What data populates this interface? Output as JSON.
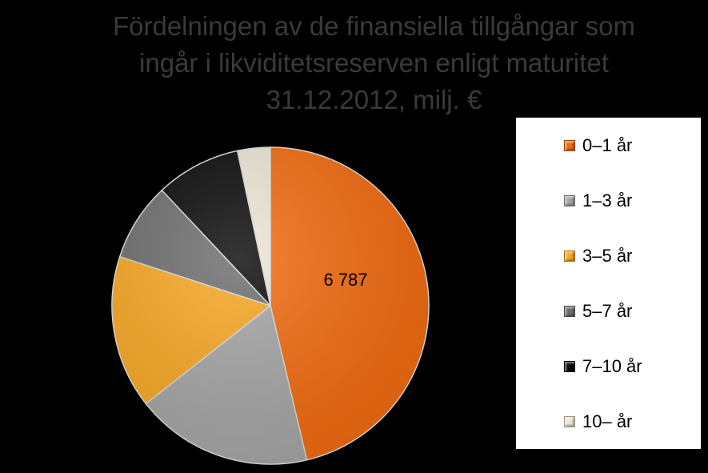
{
  "title_lines": [
    "Fördelningen av de finansiella tillgångar som",
    "ingår i likviditetsreserven enligt maturitet",
    "31.12.2012, milj. €"
  ],
  "chart_data": {
    "type": "pie",
    "title": "Fördelningen av de finansiella tillgångar som ingår i likviditetsreserven enligt maturitet 31.12.2012, milj. €",
    "legend_position": "right",
    "slices": [
      {
        "label": "0–1 år",
        "value": 6787,
        "percent": 47.3,
        "color": "#F26B10",
        "data_label": "6 787"
      },
      {
        "label": "1–3 år",
        "value": 2650,
        "percent": 18.5,
        "color": "#A6A6A6",
        "data_label": ""
      },
      {
        "label": "3–5 år",
        "value": 2290,
        "percent": 16.0,
        "color": "#F8A824",
        "data_label": ""
      },
      {
        "label": "5–7 år",
        "value": 1170,
        "percent": 8.2,
        "color": "#6E6E6E",
        "data_label": ""
      },
      {
        "label": "7–10 år",
        "value": 1270,
        "percent": 8.9,
        "color": "#0A0A0A",
        "data_label": ""
      },
      {
        "label": "10– år",
        "value": 490,
        "percent": 3.4,
        "color": "#EDE6D6",
        "data_label": ""
      }
    ]
  }
}
